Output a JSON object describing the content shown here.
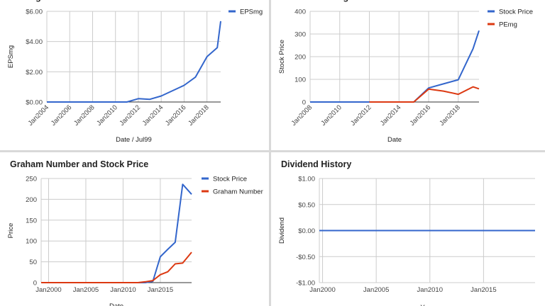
{
  "chart_data": [
    {
      "id": "eps",
      "type": "line",
      "title": "EPSmg",
      "xlabel": "Date / Jul99",
      "ylabel": "EPSmg",
      "x_ticks": [
        "Jan2004",
        "Jan2006",
        "Jan2008",
        "Jan2010",
        "Jan2012",
        "Jan2014",
        "Jan2016",
        "Jan2018"
      ],
      "y_ticks": [
        "$0.00",
        "$2.00",
        "$4.00",
        "$6.00"
      ],
      "y_tick_values": [
        0,
        2,
        4,
        6
      ],
      "xlim": [
        2004.0,
        2019.2
      ],
      "ylim": [
        0,
        6
      ],
      "legend_position": "right",
      "series": [
        {
          "name": "EPSmg",
          "color": "#3366cc",
          "x": [
            2004.0,
            2005,
            2006,
            2007,
            2008,
            2009,
            2010,
            2011,
            2012,
            2013,
            2014,
            2015,
            2016,
            2017,
            2018,
            2018.9,
            2019.2
          ],
          "y": [
            0.0,
            0.0,
            0.0,
            0.0,
            0.0,
            0.0,
            0.0,
            0.0,
            0.22,
            0.18,
            0.4,
            0.75,
            1.1,
            1.65,
            3.0,
            3.6,
            5.35
          ]
        }
      ]
    },
    {
      "id": "pe",
      "type": "line",
      "title": "Price and PEmg",
      "xlabel": "Date",
      "ylabel": "Stock Price",
      "x_ticks": [
        "Jan2008",
        "Jan2010",
        "Jan2012",
        "Jan2014",
        "Jan2016",
        "Jan2018"
      ],
      "y_ticks": [
        "0",
        "100",
        "200",
        "300",
        "400"
      ],
      "y_tick_values": [
        0,
        100,
        200,
        300,
        400
      ],
      "xlim": [
        2008.0,
        2019.4
      ],
      "ylim": [
        0,
        400
      ],
      "legend_position": "right",
      "series": [
        {
          "name": "Stock Price",
          "color": "#3366cc",
          "x": [
            2008.0,
            2009,
            2010,
            2011,
            2012,
            2013,
            2014,
            2015,
            2016,
            2017,
            2018,
            2019,
            2019.4
          ],
          "y": [
            0,
            0,
            0,
            0,
            0,
            0,
            0,
            0,
            62,
            80,
            98,
            235,
            315
          ]
        },
        {
          "name": "PEmg",
          "color": "#dc3912",
          "x": [
            2012.0,
            2013,
            2014,
            2015,
            2016,
            2017,
            2018,
            2019,
            2019.4
          ],
          "y": [
            0,
            0,
            0,
            0,
            57,
            48,
            34,
            67,
            58
          ]
        }
      ]
    },
    {
      "id": "graham",
      "type": "line",
      "title": "Graham Number and Stock Price",
      "xlabel": "Date",
      "ylabel": "Price",
      "x_ticks": [
        "Jan2000",
        "Jan2005",
        "Jan2010",
        "Jan2015"
      ],
      "y_ticks": [
        "0",
        "50",
        "100",
        "150",
        "200",
        "250"
      ],
      "y_tick_values": [
        0,
        50,
        100,
        150,
        200,
        250
      ],
      "xlim": [
        1999.0,
        2019.2
      ],
      "ylim": [
        0,
        250
      ],
      "legend_position": "right",
      "series": [
        {
          "name": "Stock Price",
          "color": "#3366cc",
          "x": [
            1999.0,
            2002,
            2005,
            2008,
            2011,
            2013,
            2014,
            2015,
            2016,
            2017,
            2018,
            2019.2
          ],
          "y": [
            0,
            0,
            0,
            0,
            0,
            0,
            3,
            62,
            80,
            97,
            236,
            212
          ]
        },
        {
          "name": "Graham Number",
          "color": "#dc3912",
          "x": [
            1999.0,
            2002,
            2005,
            2008,
            2011,
            2012,
            2013,
            2014,
            2015,
            2016,
            2017,
            2018,
            2019.2
          ],
          "y": [
            0,
            0,
            0,
            0,
            0,
            0,
            2,
            5,
            19,
            26,
            45,
            47,
            73
          ]
        }
      ]
    },
    {
      "id": "dividend",
      "type": "line",
      "title": "Dividend History",
      "xlabel": "Year",
      "ylabel": "Dividend",
      "x_ticks": [
        "Jan2000",
        "Jan2005",
        "Jan2010",
        "Jan2015"
      ],
      "y_ticks": [
        "-$1.00",
        "-$0.50",
        "$0.00",
        "$0.50",
        "$1.00"
      ],
      "y_tick_values": [
        -1,
        -0.5,
        0,
        0.5,
        1
      ],
      "xlim": [
        1999.7,
        2019.8
      ],
      "ylim": [
        -1,
        1
      ],
      "legend_position": "none",
      "series": [
        {
          "name": "Dividend",
          "color": "#3366cc",
          "x": [
            1999.7,
            2019.8
          ],
          "y": [
            0,
            0
          ]
        }
      ]
    }
  ]
}
